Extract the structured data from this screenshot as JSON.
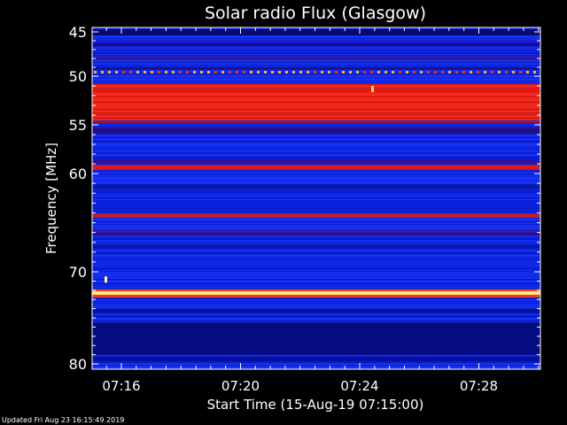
{
  "chart_data": {
    "type": "heatmap",
    "title": "Solar radio Flux (Glasgow)",
    "xlabel": "Start Time (15-Aug-19 07:15:00)",
    "ylabel": "Frequency [MHz]",
    "x_range_minutes": [
      "07:15",
      "07:30"
    ],
    "ylim": [
      44.3,
      80.2
    ],
    "y_ticks": [
      45,
      50,
      55,
      60,
      70,
      80
    ],
    "x_ticks": [
      "07:16",
      "07:20",
      "07:24",
      "07:28"
    ],
    "y_scale": "nonlinear (decreasing spacing toward high frequency)",
    "colormap": "blue (low) - red - yellow/white (high)",
    "bands": [
      {
        "freq_mhz": 49.5,
        "intensity": "dotted red-yellow interference line"
      },
      {
        "freq_mhz": 52.5,
        "intensity": "strong red band (50.8-54.5 MHz)"
      },
      {
        "freq_mhz": 59.3,
        "intensity": "red line"
      },
      {
        "freq_mhz": 64.3,
        "intensity": "red line"
      },
      {
        "freq_mhz": 72.3,
        "intensity": "bright yellow-white line"
      }
    ]
  },
  "footer": "Updated Fri Aug 23 16:15:49 2019",
  "colors": {
    "background": "#000000",
    "axis": "#ffffff",
    "low": "#0a1fd6",
    "dark": "#05045a",
    "red": "#e8201a",
    "yellow": "#ffe98a"
  }
}
